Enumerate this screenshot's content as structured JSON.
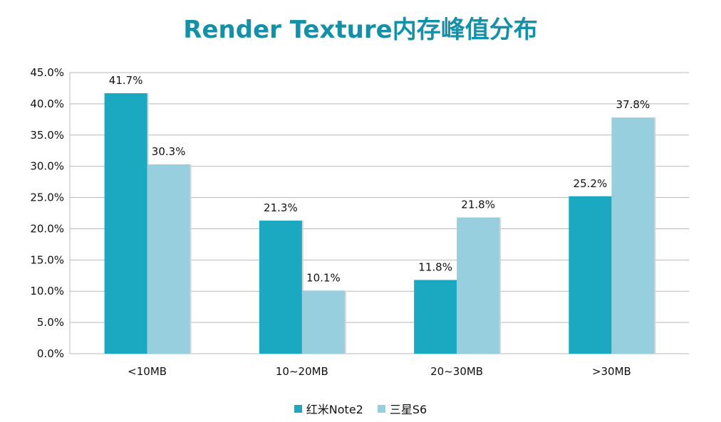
{
  "chart_data": {
    "type": "bar",
    "title": "Render Texture内存峰值分布",
    "categories": [
      "<10MB",
      "10~20MB",
      "20~30MB",
      ">30MB"
    ],
    "series": [
      {
        "name": "红米Note2",
        "color": "#1aa9c0",
        "values": [
          41.7,
          21.3,
          11.8,
          25.2
        ],
        "labels": [
          "41.7%",
          "21.3%",
          "11.8%",
          "25.2%"
        ]
      },
      {
        "name": "三星S6",
        "color": "#97cfde",
        "values": [
          30.3,
          10.1,
          21.8,
          37.8
        ],
        "labels": [
          "30.3%",
          "10.1%",
          "21.8%",
          "37.8%"
        ]
      }
    ],
    "ylim": [
      0,
      45
    ],
    "yticks": [
      0,
      5,
      10,
      15,
      20,
      25,
      30,
      35,
      40,
      45
    ],
    "ytick_labels": [
      "0.0%",
      "5.0%",
      "10.0%",
      "15.0%",
      "20.0%",
      "25.0%",
      "30.0%",
      "35.0%",
      "40.0%",
      "45.0%"
    ],
    "grid": true,
    "legend_position": "bottom",
    "xlabel": "",
    "ylabel": ""
  }
}
